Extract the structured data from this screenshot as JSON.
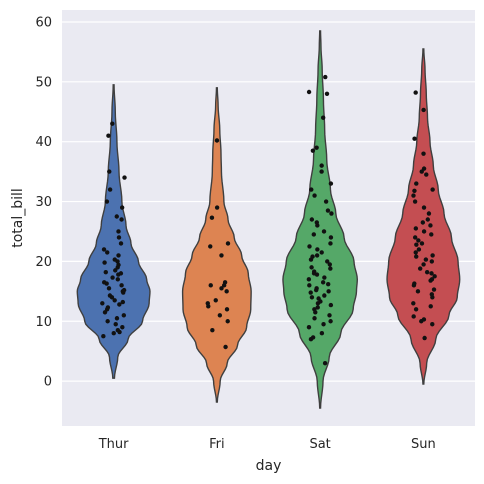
{
  "chart_data": {
    "type": "violin",
    "xlabel": "day",
    "ylabel": "total_bill",
    "categories": [
      "Thur",
      "Fri",
      "Sat",
      "Sun"
    ],
    "ylim": [
      -7.5,
      62
    ],
    "yticks": [
      0,
      10,
      20,
      30,
      40,
      50,
      60
    ],
    "grid": true,
    "background": "#eaeaf2",
    "grid_color": "#ffffff",
    "colors": [
      "#4c72b0",
      "#dd8452",
      "#55a868",
      "#c44e52"
    ],
    "edge_color": "#3f3f3f",
    "point_color": "#111111",
    "violins": [
      {
        "category": "Thur",
        "profile": [
          [
            0.5,
            0.02
          ],
          [
            4,
            0.1
          ],
          [
            7,
            0.35
          ],
          [
            10,
            0.7
          ],
          [
            13,
            0.86
          ],
          [
            15,
            0.88
          ],
          [
            17,
            0.8
          ],
          [
            20,
            0.6
          ],
          [
            23,
            0.42
          ],
          [
            26,
            0.3
          ],
          [
            30,
            0.2
          ],
          [
            35,
            0.13
          ],
          [
            40,
            0.08
          ],
          [
            45,
            0.04
          ],
          [
            49.5,
            0.01
          ]
        ],
        "points": [
          7.5,
          8,
          8.2,
          8.5,
          9,
          9.5,
          10,
          10.5,
          11,
          11.5,
          12,
          12.3,
          12.8,
          13,
          13.2,
          13.5,
          14,
          14.3,
          14.8,
          15,
          15.2,
          15.5,
          16,
          16.3,
          16.5,
          17,
          17.3,
          17.8,
          18,
          18.2,
          18.5,
          19,
          19.4,
          19.8,
          20,
          20.3,
          21,
          21.5,
          22,
          23,
          24,
          25,
          27,
          27.5,
          29,
          30,
          32,
          34,
          35,
          41,
          43
        ]
      },
      {
        "category": "Fri",
        "profile": [
          [
            -3.5,
            0.01
          ],
          [
            0,
            0.08
          ],
          [
            3,
            0.25
          ],
          [
            6,
            0.5
          ],
          [
            9,
            0.72
          ],
          [
            12,
            0.82
          ],
          [
            15,
            0.83
          ],
          [
            18,
            0.76
          ],
          [
            21,
            0.6
          ],
          [
            24,
            0.42
          ],
          [
            27,
            0.27
          ],
          [
            30,
            0.17
          ],
          [
            35,
            0.11
          ],
          [
            38,
            0.1
          ],
          [
            42,
            0.07
          ],
          [
            46,
            0.03
          ],
          [
            49,
            0.01
          ]
        ],
        "points": [
          5.7,
          8.5,
          10,
          11,
          12,
          12.5,
          13,
          13.5,
          15,
          15.5,
          16,
          16,
          16.5,
          21,
          22.5,
          23,
          27.3,
          29,
          40.2
        ]
      },
      {
        "category": "Sat",
        "profile": [
          [
            -4.5,
            0.01
          ],
          [
            0,
            0.07
          ],
          [
            4,
            0.22
          ],
          [
            8,
            0.5
          ],
          [
            12,
            0.8
          ],
          [
            15,
            0.88
          ],
          [
            17,
            0.9
          ],
          [
            20,
            0.82
          ],
          [
            24,
            0.58
          ],
          [
            28,
            0.38
          ],
          [
            32,
            0.25
          ],
          [
            37,
            0.16
          ],
          [
            42,
            0.11
          ],
          [
            47,
            0.08
          ],
          [
            52,
            0.05
          ],
          [
            56,
            0.02
          ],
          [
            58.5,
            0.01
          ]
        ],
        "points": [
          3,
          7,
          7.3,
          8,
          9,
          9.5,
          10,
          10.5,
          11,
          11.5,
          12,
          12.3,
          12.7,
          13,
          13.3,
          13.8,
          14,
          14.3,
          14.8,
          15,
          15.2,
          15.5,
          16,
          16.2,
          16.5,
          17,
          17.3,
          17.8,
          18,
          18.3,
          18.8,
          19,
          19.5,
          20,
          20.3,
          20.8,
          21,
          21.5,
          22,
          22.5,
          23,
          24,
          24.5,
          25,
          26,
          26.5,
          27,
          28,
          28.5,
          30,
          31,
          32,
          33,
          35,
          36,
          38.5,
          39,
          44,
          48,
          48.3,
          50.8
        ]
      },
      {
        "category": "Sun",
        "profile": [
          [
            -0.5,
            0.01
          ],
          [
            3,
            0.08
          ],
          [
            7,
            0.3
          ],
          [
            11,
            0.62
          ],
          [
            14,
            0.82
          ],
          [
            17,
            0.88
          ],
          [
            20,
            0.84
          ],
          [
            24,
            0.68
          ],
          [
            28,
            0.5
          ],
          [
            32,
            0.36
          ],
          [
            36,
            0.24
          ],
          [
            40,
            0.16
          ],
          [
            44,
            0.1
          ],
          [
            48,
            0.07
          ],
          [
            52,
            0.04
          ],
          [
            55.5,
            0.01
          ]
        ],
        "points": [
          7.2,
          9.5,
          10,
          10.3,
          10.8,
          12,
          12.5,
          13,
          14,
          14.5,
          15,
          15.3,
          16,
          16.3,
          16.8,
          17,
          17.5,
          18,
          18.2,
          18.8,
          19.5,
          20,
          20.3,
          20.8,
          21,
          21.5,
          22,
          22.8,
          23,
          23.5,
          24,
          24.5,
          25,
          25.5,
          26,
          26.5,
          27,
          28,
          29,
          30,
          31,
          31.8,
          32,
          33,
          34.5,
          35,
          35.5,
          38,
          40.5,
          45.3,
          48.2
        ]
      }
    ]
  }
}
